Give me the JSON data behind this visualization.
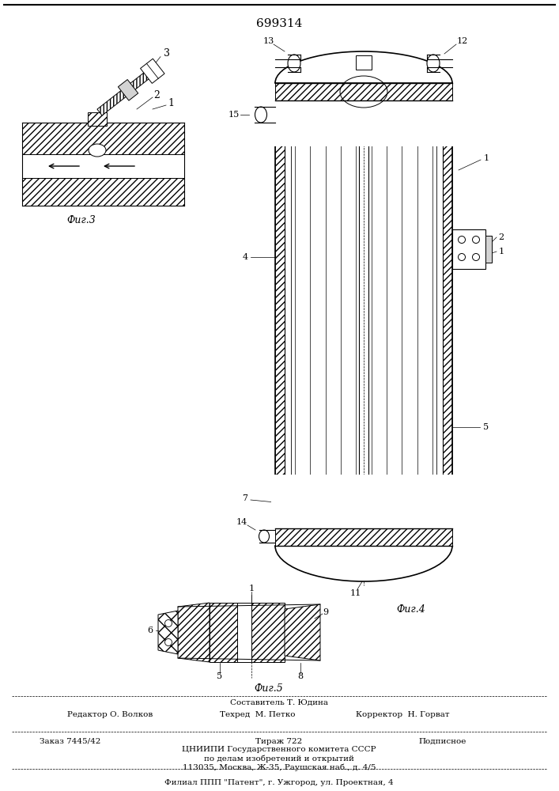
{
  "patent_number": "699314",
  "background_color": "#ffffff",
  "footer": {
    "line1_center_top": "Составитель Т. Юдина",
    "line1_left": "Редактор О. Волков",
    "line1_center": "Техред  М. Петко",
    "line1_right": "Корректор  Н. Горват",
    "line2_left": "Заказ 7445/42",
    "line2_center": "Тираж 722",
    "line2_right": "Подписное",
    "line3": "ЦНИИПИ Государственного комитета СССР",
    "line4": "по делам изобретений и открытий",
    "line5": "113035, Москва, Ж-35, Раушская наб., д. 4/5",
    "line6": "Филиал ППП \"Патент\", г. Ужгород, ул. Проектная, 4"
  }
}
